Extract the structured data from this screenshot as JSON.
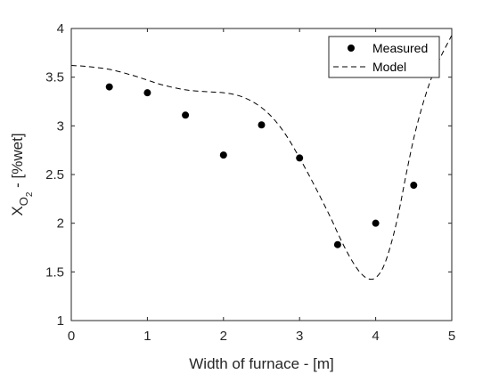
{
  "chart_data": {
    "type": "scatter",
    "xlabel": "Width of furnace - [m]",
    "ylabel_main": "X",
    "ylabel_sub": "O",
    "ylabel_subsub": "2",
    "ylabel_rest": " - [%wet]",
    "xlim": [
      0,
      5
    ],
    "ylim": [
      1,
      4
    ],
    "xticks": [
      "0",
      "1",
      "2",
      "3",
      "4",
      "5"
    ],
    "yticks": [
      "1",
      "1.5",
      "2",
      "2.5",
      "3",
      "3.5",
      "4"
    ],
    "grid": false,
    "legend_position": "top-right",
    "series": [
      {
        "name": "Measured",
        "style": "markers",
        "x": [
          0.5,
          1.0,
          1.5,
          2.0,
          2.5,
          3.0,
          3.5,
          4.0,
          4.5
        ],
        "y": [
          3.4,
          3.34,
          3.11,
          2.7,
          3.01,
          2.67,
          1.78,
          2.0,
          2.39
        ]
      },
      {
        "name": "Model",
        "style": "dashed",
        "x": [
          0.0,
          0.2,
          0.5,
          0.8,
          1.0,
          1.2,
          1.5,
          1.8,
          2.0,
          2.2,
          2.4,
          2.6,
          2.8,
          3.0,
          3.2,
          3.4,
          3.5,
          3.6,
          3.7,
          3.8,
          3.9,
          4.0,
          4.1,
          4.2,
          4.3,
          4.4,
          4.5,
          4.6,
          4.7,
          4.8,
          4.9,
          5.0
        ],
        "y": [
          3.62,
          3.61,
          3.58,
          3.52,
          3.47,
          3.42,
          3.37,
          3.35,
          3.34,
          3.31,
          3.24,
          3.12,
          2.93,
          2.67,
          2.38,
          2.07,
          1.9,
          1.74,
          1.6,
          1.49,
          1.43,
          1.44,
          1.55,
          1.78,
          2.1,
          2.5,
          2.87,
          3.17,
          3.42,
          3.62,
          3.78,
          3.93
        ]
      }
    ],
    "colors": {
      "marker": "#000000",
      "line": "#000000",
      "axes": "#262626"
    }
  }
}
